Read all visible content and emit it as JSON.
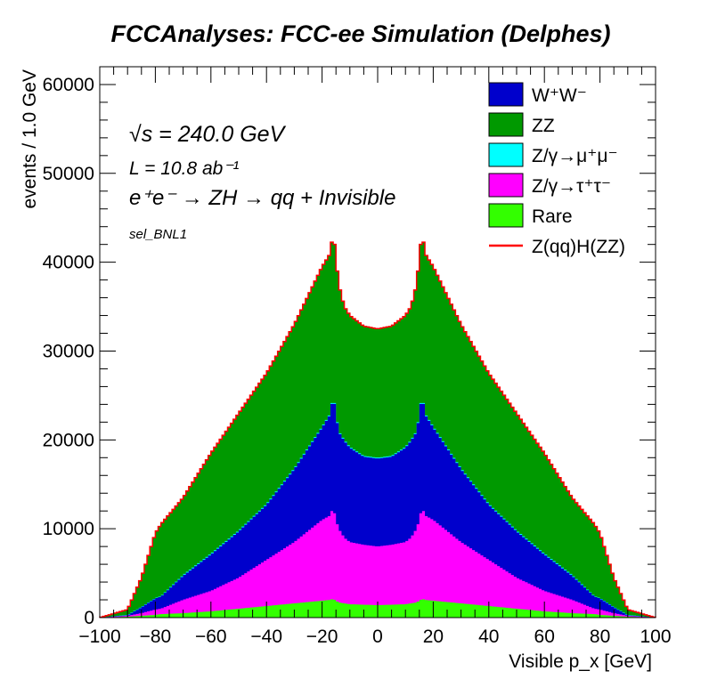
{
  "chart_data": {
    "type": "area",
    "stacked": true,
    "title": "FCCAnalyses: FCC-ee Simulation (Delphes)",
    "xlabel": "Visible p_x [GeV]",
    "ylabel": "events / 1.0 GeV",
    "xlim": [
      -100,
      100
    ],
    "ylim": [
      0,
      62000
    ],
    "xticks": [
      -100,
      -80,
      -60,
      -40,
      -20,
      0,
      20,
      40,
      60,
      80,
      100
    ],
    "yticks": [
      0,
      10000,
      20000,
      30000,
      40000,
      50000,
      60000
    ],
    "grid": false,
    "legend_position": "top-right",
    "annotations": {
      "sqrt_s": "√s = 240.0 GeV",
      "lumi": "L = 10.8 ab⁻¹",
      "process": "e⁺e⁻ → ZH → qq + Invisible",
      "selection": "sel_BNL1"
    },
    "key_points_x": [
      -100,
      -90,
      -85,
      -80,
      -78,
      -70,
      -60,
      -50,
      -40,
      -30,
      -20,
      -17,
      -16,
      -15,
      -14,
      -12,
      -10,
      -5,
      0,
      5,
      10,
      12,
      14,
      15,
      16,
      17,
      20,
      30,
      40,
      50,
      60,
      70,
      78,
      80,
      85,
      90,
      100
    ],
    "series": [
      {
        "name": "Rare",
        "color": "#33ff00",
        "cumulative_top": [
          0,
          100,
          200,
          300,
          400,
          500,
          700,
          1000,
          1300,
          1600,
          1900,
          2000,
          2100,
          1900,
          1700,
          1600,
          1500,
          1450,
          1400,
          1450,
          1500,
          1600,
          1700,
          1900,
          2100,
          2000,
          1900,
          1600,
          1300,
          1000,
          700,
          500,
          400,
          300,
          200,
          100,
          0
        ]
      },
      {
        "name": "Z/γ→τ⁺τ⁻",
        "color": "#ff00ff",
        "cumulative_top": [
          0,
          200,
          500,
          900,
          1000,
          2000,
          3000,
          4500,
          6500,
          8500,
          11000,
          11500,
          12500,
          11000,
          10000,
          9000,
          8500,
          8200,
          8000,
          8200,
          8500,
          9000,
          10000,
          11000,
          12500,
          11500,
          11000,
          8500,
          6500,
          4500,
          3000,
          2000,
          1000,
          900,
          500,
          200,
          0
        ]
      },
      {
        "name": "Z/γ→μ⁺μ⁻",
        "color": "#00ffff",
        "cumulative_top": [
          0,
          300,
          1200,
          2200,
          2400,
          4800,
          7200,
          9800,
          12800,
          16800,
          21500,
          23000,
          25300,
          23000,
          21000,
          20000,
          19200,
          18200,
          18000,
          18200,
          19200,
          20000,
          21000,
          23000,
          25300,
          23000,
          21500,
          16800,
          12800,
          9800,
          7200,
          4800,
          2400,
          2200,
          1200,
          300,
          0
        ]
      },
      {
        "name": "W⁺W⁻",
        "color": "#0000cc",
        "cumulative_top": [
          0,
          250,
          1150,
          2150,
          2350,
          4700,
          7100,
          9700,
          12700,
          16700,
          21400,
          22900,
          25200,
          22900,
          20900,
          19900,
          19100,
          18100,
          17900,
          18100,
          19100,
          19900,
          20900,
          22900,
          25200,
          22900,
          21400,
          16700,
          12700,
          9700,
          7100,
          4700,
          2350,
          2150,
          1150,
          250,
          0
        ]
      },
      {
        "name": "ZZ",
        "color": "#009900",
        "cumulative_top": [
          0,
          900,
          4500,
          9500,
          10500,
          13500,
          18500,
          23000,
          27500,
          33000,
          39500,
          41000,
          43500,
          40500,
          37500,
          35000,
          34000,
          32800,
          32500,
          32800,
          34000,
          35000,
          37500,
          40500,
          43500,
          41000,
          39500,
          33000,
          27500,
          23000,
          18500,
          13500,
          10500,
          9500,
          4500,
          900,
          0
        ]
      },
      {
        "name": "Z(qq)H(ZZ)",
        "color": "#ff0000",
        "line_only": true,
        "cumulative_top": [
          0,
          900,
          4500,
          9500,
          10500,
          13500,
          18500,
          23000,
          27500,
          33000,
          39500,
          41000,
          43500,
          40500,
          37500,
          35000,
          34000,
          32800,
          32500,
          32800,
          34000,
          35000,
          37500,
          40500,
          43500,
          41000,
          39500,
          33000,
          27500,
          23000,
          18500,
          13500,
          10500,
          9500,
          4500,
          900,
          0
        ]
      }
    ],
    "legend": [
      {
        "label": "W⁺W⁻",
        "color": "#0000cc",
        "kind": "box"
      },
      {
        "label": "ZZ",
        "color": "#009900",
        "kind": "box"
      },
      {
        "label": "Z/γ→μ⁺μ⁻",
        "color": "#00ffff",
        "kind": "box"
      },
      {
        "label": "Z/γ→τ⁺τ⁻",
        "color": "#ff00ff",
        "kind": "box"
      },
      {
        "label": "Rare",
        "color": "#33ff00",
        "kind": "box"
      },
      {
        "label": "Z(qq)H(ZZ)",
        "color": "#ff0000",
        "kind": "line"
      }
    ]
  }
}
